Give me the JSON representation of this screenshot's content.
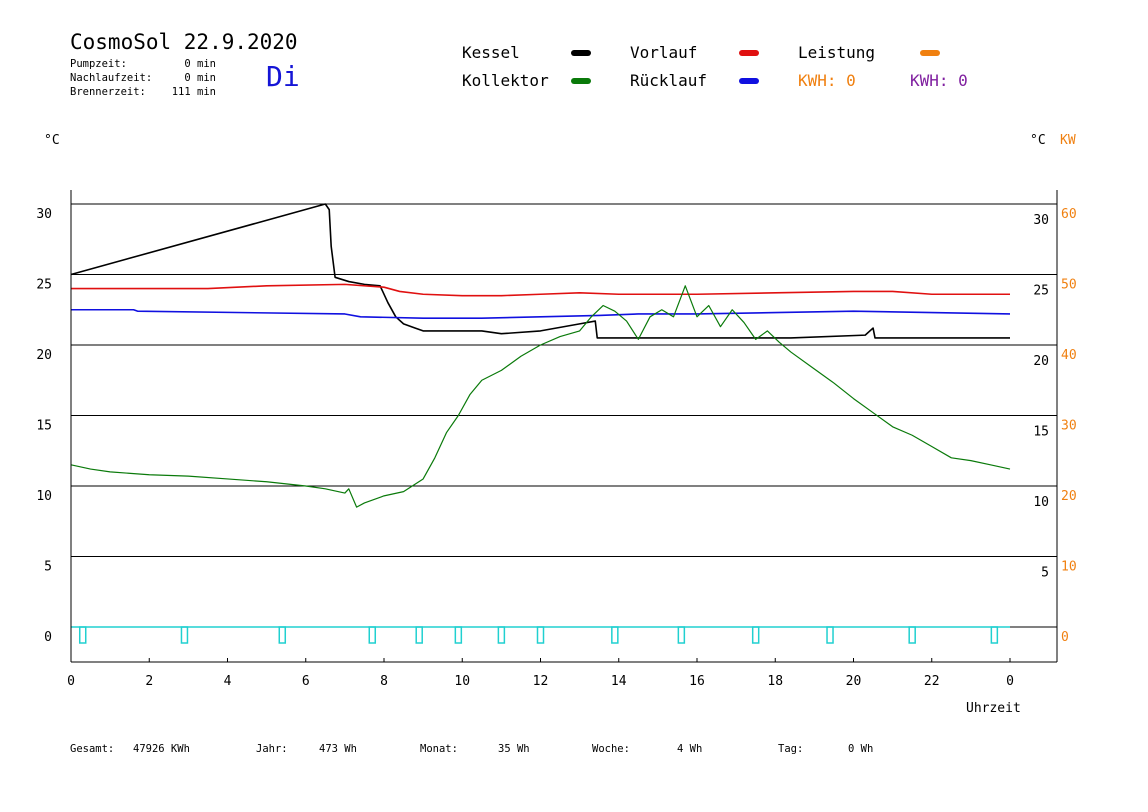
{
  "header": {
    "title": "CosmoSol 22.9.2020",
    "weekday": "Di",
    "stats": [
      {
        "label": "Pumpzeit:",
        "value": "0 min"
      },
      {
        "label": "Nachlaufzeit:",
        "value": "0 min"
      },
      {
        "label": "Brennerzeit:",
        "value": "111 min"
      }
    ]
  },
  "legend": {
    "kessel": "Kessel",
    "kollektor": "Kollektor",
    "vorlauf": "Vorlauf",
    "ruecklauf": "Rücklauf",
    "leistung": "Leistung",
    "kwh_orange": "KWH: 0",
    "kwh_purple": "KWH: 0"
  },
  "units": {
    "left": "°C",
    "right_c": "°C",
    "right_kw": "KW",
    "xlabel": "Uhrzeit"
  },
  "footer": {
    "gesamt_label": "Gesamt:",
    "gesamt_value": "47926 KWh",
    "jahr_label": "Jahr:",
    "jahr_value": "473 Wh",
    "monat_label": "Monat:",
    "monat_value": "35 Wh",
    "woche_label": "Woche:",
    "woche_value": "4 Wh",
    "tag_label": "Tag:",
    "tag_value": "0 Wh"
  },
  "colors": {
    "kessel": "#000000",
    "kollektor": "#0a7a0a",
    "vorlauf": "#e01010",
    "ruecklauf": "#1010e0",
    "leistung": "#f08010",
    "kwh_purple": "#8020a0",
    "pump": "#20d0d0"
  },
  "chart_data": {
    "type": "line",
    "xlabel": "Uhrzeit",
    "ylabel": "°C",
    "xlim": [
      0,
      24
    ],
    "ylim": [
      -2.5,
      32
    ],
    "y2lim": [
      -5,
      64
    ],
    "x_ticks": [
      "0",
      "2",
      "4",
      "6",
      "8",
      "10",
      "12",
      "14",
      "16",
      "18",
      "20",
      "22",
      "0"
    ],
    "y_ticks_left": [
      "30",
      "25",
      "20",
      "15",
      "10",
      "5",
      "0"
    ],
    "y_ticks_right": [
      "30",
      "25",
      "20",
      "15",
      "10",
      "5"
    ],
    "y2_ticks_right": [
      "60",
      "50",
      "40",
      "30",
      "20",
      "10",
      "0"
    ],
    "grid_y": [
      0,
      5,
      10,
      15,
      20,
      25,
      30
    ],
    "series": [
      {
        "name": "Kessel",
        "color": "#000000",
        "x": [
          0,
          6.5,
          6.6,
          6.65,
          6.75,
          7.1,
          7.5,
          7.9,
          8.1,
          8.3,
          8.5,
          8.8,
          9.0,
          10.5,
          11.0,
          12.0,
          13.0,
          13.4,
          13.45,
          18.4,
          20.3,
          20.5,
          20.55,
          24.0
        ],
        "y": [
          25.0,
          30.0,
          29.6,
          27.0,
          24.8,
          24.5,
          24.3,
          24.2,
          23.0,
          22.0,
          21.5,
          21.2,
          21.0,
          21.0,
          20.8,
          21.0,
          21.5,
          21.7,
          20.5,
          20.5,
          20.7,
          21.2,
          20.5,
          20.5
        ]
      },
      {
        "name": "Vorlauf",
        "color": "#e01010",
        "x": [
          0,
          3.5,
          5.0,
          7.0,
          8.0,
          8.4,
          9.0,
          10.0,
          11.0,
          12.0,
          13.0,
          14.0,
          16.0,
          18.0,
          20.0,
          21.0,
          22.0,
          24.0
        ],
        "y": [
          24.0,
          24.0,
          24.2,
          24.3,
          24.1,
          23.8,
          23.6,
          23.5,
          23.5,
          23.6,
          23.7,
          23.6,
          23.6,
          23.7,
          23.8,
          23.8,
          23.6,
          23.6
        ]
      },
      {
        "name": "Rücklauf",
        "color": "#1010e0",
        "x": [
          0,
          1.6,
          1.7,
          7.0,
          7.4,
          9.0,
          10.5,
          12.0,
          13.5,
          14.5,
          16.0,
          18.0,
          20.0,
          22.0,
          24.0
        ],
        "y": [
          22.5,
          22.5,
          22.4,
          22.2,
          22.0,
          21.9,
          21.9,
          22.0,
          22.1,
          22.2,
          22.2,
          22.3,
          22.4,
          22.3,
          22.2
        ]
      },
      {
        "name": "Kollektor",
        "color": "#0a7a0a",
        "x": [
          0,
          0.5,
          1.0,
          2.0,
          3.0,
          4.0,
          5.0,
          6.0,
          6.5,
          7.0,
          7.1,
          7.3,
          7.5,
          8.0,
          8.5,
          9.0,
          9.3,
          9.6,
          9.9,
          10.2,
          10.5,
          11.0,
          11.5,
          12.0,
          12.5,
          13.0,
          13.3,
          13.6,
          13.9,
          14.2,
          14.5,
          14.8,
          15.1,
          15.4,
          15.7,
          16.0,
          16.3,
          16.6,
          16.9,
          17.2,
          17.5,
          17.8,
          18.1,
          18.4,
          19.0,
          19.5,
          20.0,
          20.5,
          21.0,
          21.5,
          22.0,
          22.5,
          23.0,
          23.5,
          24.0
        ],
        "y": [
          11.5,
          11.2,
          11.0,
          10.8,
          10.7,
          10.5,
          10.3,
          10.0,
          9.8,
          9.5,
          9.8,
          8.5,
          8.8,
          9.3,
          9.6,
          10.5,
          12.0,
          13.8,
          15.0,
          16.5,
          17.5,
          18.2,
          19.2,
          20.0,
          20.6,
          21.0,
          22.0,
          22.8,
          22.4,
          21.7,
          20.4,
          22.0,
          22.5,
          22.0,
          24.2,
          22.0,
          22.8,
          21.3,
          22.5,
          21.6,
          20.4,
          21.0,
          20.2,
          19.5,
          18.3,
          17.3,
          16.2,
          15.2,
          14.2,
          13.6,
          12.8,
          12.0,
          11.8,
          11.5,
          11.2
        ]
      },
      {
        "name": "Pumpe",
        "color": "#20d0d0",
        "x": [
          0.3,
          2.9,
          5.4,
          7.7,
          8.9,
          9.9,
          11.0,
          12.0,
          13.9,
          15.6,
          17.5,
          19.4,
          21.5,
          23.6
        ],
        "y": [
          0,
          0,
          0,
          0,
          0,
          0,
          0,
          0,
          0,
          0,
          0,
          0,
          0,
          0
        ]
      }
    ]
  }
}
